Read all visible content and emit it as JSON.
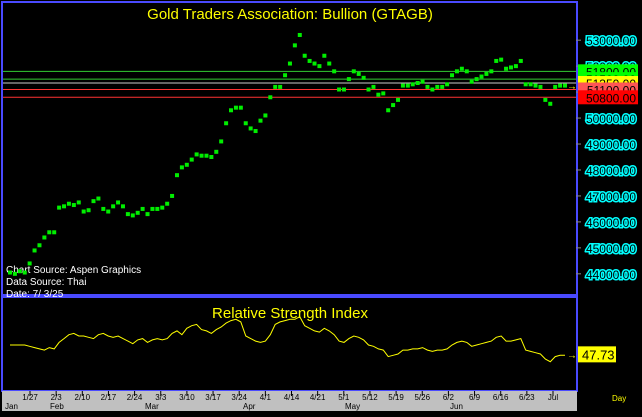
{
  "chart_data": [
    {
      "type": "scatter",
      "title": "Gold Traders Association: Bullion (GTAGB)",
      "info": [
        "Chart Source: Aspen Graphics",
        "Data Source: Thai",
        "Date: 7/ 3/25"
      ],
      "ylim": [
        43300,
        53700
      ],
      "y_ticks": [
        "53000.00",
        "52000.00",
        "51000.00",
        "50000.00",
        "49000.00",
        "48000.00",
        "47000.00",
        "46000.00",
        "45000.00",
        "44000.00"
      ],
      "y_tick_values": [
        53000,
        52000,
        51000,
        50000,
        49000,
        48000,
        47000,
        46000,
        45000,
        44000
      ],
      "grid": false,
      "levels": [
        {
          "value": 51800,
          "label": "51800.00",
          "color": "#33cc33",
          "bg": "#00ff00",
          "fg": "#000000"
        },
        {
          "value": 51500,
          "label": "51500.00",
          "color": "#33cc33",
          "bg": "#00ff00",
          "fg": "#000000"
        },
        {
          "value": 51350,
          "label": "51350.00",
          "color": "#cccccc",
          "bg": "#ffff00",
          "fg": "#000000"
        },
        {
          "value": 51100,
          "label": "51100.00",
          "color": "#ff3333",
          "bg": "#ff5555",
          "fg": "#000000"
        },
        {
          "value": 50800,
          "label": "50800.00",
          "color": "#ff3333",
          "bg": "#ff0000",
          "fg": "#000000"
        }
      ],
      "series_color": "#00ee00",
      "values": [
        44050,
        44000,
        44100,
        44050,
        44400,
        44900,
        45100,
        45400,
        45600,
        45600,
        46550,
        46600,
        46700,
        46650,
        46750,
        46400,
        46450,
        46800,
        46900,
        46500,
        46400,
        46600,
        46750,
        46600,
        46300,
        46250,
        46350,
        46500,
        46300,
        46500,
        46500,
        46550,
        46700,
        47000,
        47800,
        48100,
        48200,
        48400,
        48600,
        48550,
        48550,
        48500,
        48700,
        49100,
        49800,
        50300,
        50400,
        50400,
        49800,
        49600,
        49500,
        49900,
        50100,
        50800,
        51200,
        51200,
        51650,
        52100,
        52800,
        53200,
        52400,
        52200,
        52100,
        52000,
        52400,
        52100,
        51800,
        51100,
        51100,
        51500,
        51800,
        51700,
        51550,
        51100,
        51200,
        50900,
        50950,
        50300,
        50500,
        50700,
        51250,
        51250,
        51300,
        51350,
        51400,
        51200,
        51100,
        51200,
        51200,
        51300,
        51650,
        51800,
        51900,
        51800,
        51400,
        51500,
        51600,
        51700,
        51800,
        52200,
        52250,
        51900,
        51950,
        52000,
        52200,
        51300,
        51300,
        51250,
        51200,
        50700,
        50550,
        51200,
        51250,
        51250
      ]
    },
    {
      "type": "line",
      "title": "Relative Strength Index",
      "ylim": [
        20,
        90
      ],
      "last_value": "47.73",
      "last_value_y": 47.73,
      "series_color": "#ffff00",
      "values": [
        55,
        55,
        55,
        55,
        54,
        53,
        52,
        51,
        53,
        52,
        57,
        60,
        63,
        64,
        62,
        62,
        61,
        60,
        63,
        64,
        62,
        61,
        62,
        60,
        58,
        56,
        59,
        60,
        57,
        59,
        60,
        59,
        60,
        64,
        66,
        63,
        68,
        70,
        71,
        67,
        66,
        64,
        67,
        69,
        72,
        74,
        75,
        73,
        62,
        60,
        58,
        57,
        58,
        63,
        71,
        73,
        74,
        75,
        75,
        77,
        70,
        68,
        66,
        65,
        68,
        66,
        63,
        58,
        57,
        60,
        62,
        61,
        59,
        55,
        54,
        52,
        51,
        46,
        47,
        48,
        51,
        51,
        52,
        52,
        53,
        51,
        50,
        51,
        51,
        52,
        55,
        57,
        58,
        57,
        54,
        55,
        56,
        57,
        58,
        61,
        62,
        58,
        58,
        59,
        60,
        51,
        50,
        49,
        48,
        44,
        42,
        46,
        47,
        47
      ]
    }
  ],
  "x_axis": {
    "week_labels": [
      "1/27",
      "2/3",
      "2/10",
      "2/17",
      "2/24",
      "3/3",
      "3/10",
      "3/17",
      "3/24",
      "4/1",
      "4/14",
      "4/21",
      "5/1",
      "5/12",
      "5/19",
      "5/26",
      "6/2",
      "6/9",
      "6/16",
      "6/23",
      "Jul"
    ],
    "month_labels": [
      "Jan",
      "Feb",
      "Mar",
      "Apr",
      "May",
      "Jun",
      "Day"
    ]
  },
  "colors": {
    "panel_border": "#4a4aff",
    "axis_text": "#ffff00",
    "title_text": "#ffff00",
    "info_text": "#ffffff",
    "tick_text": "#000000",
    "axis_strip": "#c0c0c0"
  }
}
